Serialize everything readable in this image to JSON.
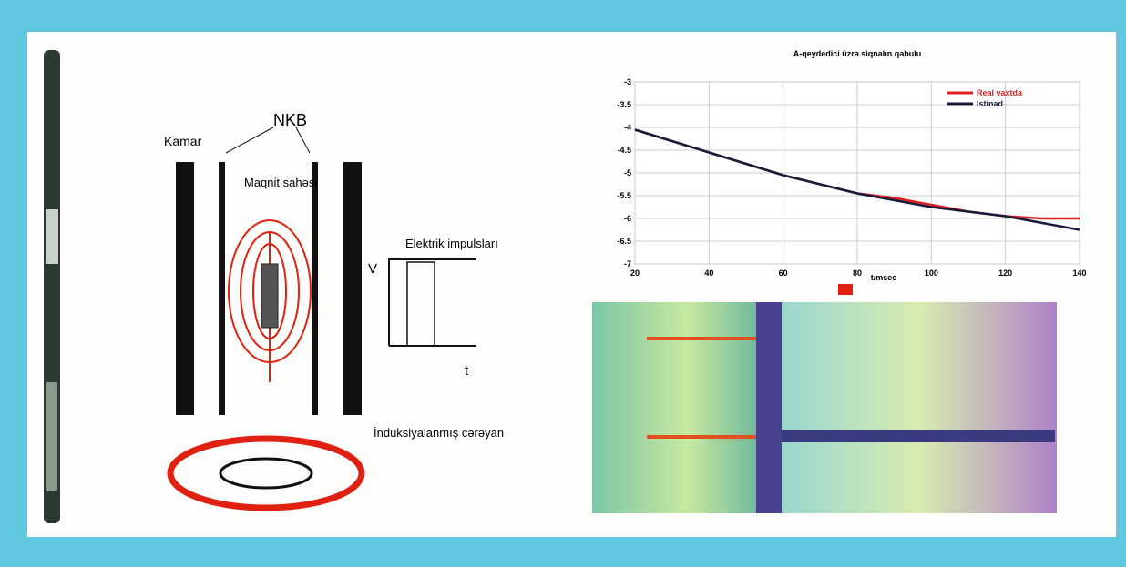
{
  "diagram": {
    "formation": "Kamar",
    "casing": "NKB",
    "field": "Maqnit sahəsi",
    "pulses": "Elektrik impulsları",
    "axis_v": "V",
    "axis_t": "t",
    "current": "İnduksiyalanmış cərəyan"
  },
  "chart_data": {
    "type": "line",
    "title": "A-qeydedici üzrə siqnalın qəbulu",
    "x_label": "t/msec",
    "x": [
      20,
      30,
      40,
      50,
      60,
      70,
      80,
      90,
      100,
      110,
      120,
      130,
      140
    ],
    "series": [
      {
        "name": "Real vaxtda",
        "color": "#e02020",
        "values": [
          -4.05,
          -4.3,
          -4.55,
          -4.8,
          -5.05,
          -5.25,
          -5.45,
          -5.55,
          -5.7,
          -5.85,
          -5.95,
          -6.0,
          -6.0
        ]
      },
      {
        "name": "Istinad",
        "color": "#1a1a3a",
        "values": [
          -4.05,
          -4.3,
          -4.55,
          -4.8,
          -5.05,
          -5.25,
          -5.45,
          -5.6,
          -5.75,
          -5.85,
          -5.95,
          -6.1,
          -6.25
        ]
      }
    ],
    "xlim": [
      20,
      140
    ],
    "xticks": [
      20,
      40,
      60,
      80,
      100,
      120,
      140
    ],
    "ylim": [
      -7.0,
      -3.0
    ],
    "yticks": [
      -3.0,
      -3.5,
      -4.0,
      -4.5,
      -5.0,
      -5.5,
      -6.0,
      -6.5,
      -7.0
    ],
    "grid": true,
    "legend": "top-right"
  }
}
